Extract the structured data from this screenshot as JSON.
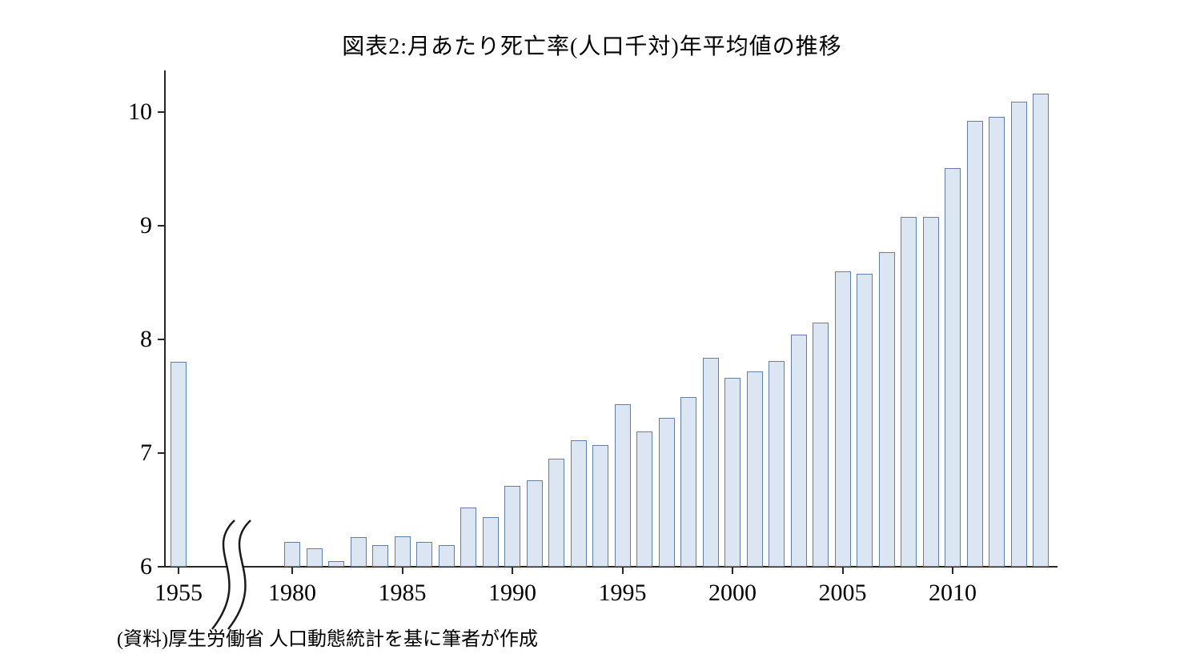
{
  "title": "図表2:月あたり死亡率(人口千対)年平均値の推移",
  "source_note": "(資料)厚生労働省 人口動態統計を基に筆者が作成",
  "colors": {
    "bar_fill": "#dce6f2",
    "bar_border": "#5f7fa6",
    "axis": "#262626",
    "text": "#000000",
    "background": "#ffffff"
  },
  "chart_data": {
    "type": "bar",
    "title": "図表2:月あたり死亡率(人口千対)年平均値の推移",
    "xlabel": "",
    "ylabel": "",
    "ylim": [
      6,
      10.35
    ],
    "y_ticks": [
      6,
      7,
      8,
      9,
      10
    ],
    "x_tick_labels": [
      "1955",
      "1980",
      "1985",
      "1990",
      "1995",
      "2000",
      "2005",
      "2010"
    ],
    "axis_break_between": [
      "1955",
      "1980"
    ],
    "grid": "off",
    "legend": "none",
    "categories": [
      "1955",
      "1980",
      "1981",
      "1982",
      "1983",
      "1984",
      "1985",
      "1986",
      "1987",
      "1988",
      "1989",
      "1990",
      "1991",
      "1992",
      "1993",
      "1994",
      "1995",
      "1996",
      "1997",
      "1998",
      "1999",
      "2000",
      "2001",
      "2002",
      "2003",
      "2004",
      "2005",
      "2006",
      "2007",
      "2008",
      "2009",
      "2010",
      "2011",
      "2012",
      "2013",
      "2014"
    ],
    "values": [
      7.8,
      6.22,
      6.16,
      6.05,
      6.26,
      6.19,
      6.27,
      6.22,
      6.19,
      6.52,
      6.44,
      6.71,
      6.76,
      6.95,
      7.11,
      7.07,
      7.43,
      7.19,
      7.31,
      7.49,
      7.84,
      7.66,
      7.72,
      7.81,
      8.04,
      8.15,
      8.6,
      8.58,
      8.77,
      9.08,
      9.08,
      9.51,
      9.92,
      9.96,
      10.09,
      10.16
    ]
  }
}
